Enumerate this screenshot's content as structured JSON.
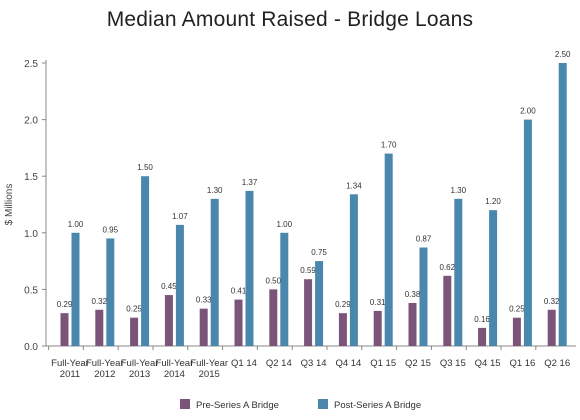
{
  "chart_data": {
    "type": "bar",
    "title": "Median Amount Raised - Bridge Loans",
    "ylabel": "$ Millions",
    "xlabel": "",
    "ylim": [
      0,
      2.5
    ],
    "yticks": [
      "0.0",
      "0.5",
      "1.0",
      "1.5",
      "2.0",
      "2.5"
    ],
    "ytick_values": [
      0,
      0.5,
      1.0,
      1.5,
      2.0,
      2.5
    ],
    "grid": false,
    "legend_position": "bottom",
    "categories": [
      [
        "Full-Year",
        "2011"
      ],
      [
        "Full-Year",
        "2012"
      ],
      [
        "Full-Year",
        "2013"
      ],
      [
        "Full-Year",
        "2014"
      ],
      [
        "Full-Year",
        "2015"
      ],
      [
        "Q1 14"
      ],
      [
        "Q2 14"
      ],
      [
        "Q3 14"
      ],
      [
        "Q4 14"
      ],
      [
        "Q1 15"
      ],
      [
        "Q2 15"
      ],
      [
        "Q3 15"
      ],
      [
        "Q4 15"
      ],
      [
        "Q1 16"
      ],
      [
        "Q2 16"
      ]
    ],
    "series": [
      {
        "name": "Pre-Series A Bridge",
        "color": "#7a5479",
        "values": [
          0.29,
          0.32,
          0.25,
          0.45,
          0.33,
          0.41,
          0.5,
          0.59,
          0.29,
          0.31,
          0.38,
          0.62,
          0.16,
          0.25,
          0.32
        ],
        "labels": [
          "0.29",
          "0.32",
          "0.25",
          "0.45",
          "0.33",
          "0.41",
          "0.50",
          "0.59",
          "0.29",
          "0.31",
          "0.38",
          "0.62",
          "0.16",
          "0.25",
          "0.32"
        ]
      },
      {
        "name": "Post-Series A Bridge",
        "color": "#4a87ad",
        "values": [
          1.0,
          0.95,
          1.5,
          1.07,
          1.3,
          1.37,
          1.0,
          0.75,
          1.34,
          1.7,
          0.87,
          1.3,
          1.2,
          2.0,
          2.5
        ],
        "labels": [
          "1.00",
          "0.95",
          "1.50",
          "1.07",
          "1.30",
          "1.37",
          "1.00",
          "0.75",
          "1.34",
          "1.70",
          "0.87",
          "1.30",
          "1.20",
          "2.00",
          "2.50"
        ]
      }
    ]
  }
}
